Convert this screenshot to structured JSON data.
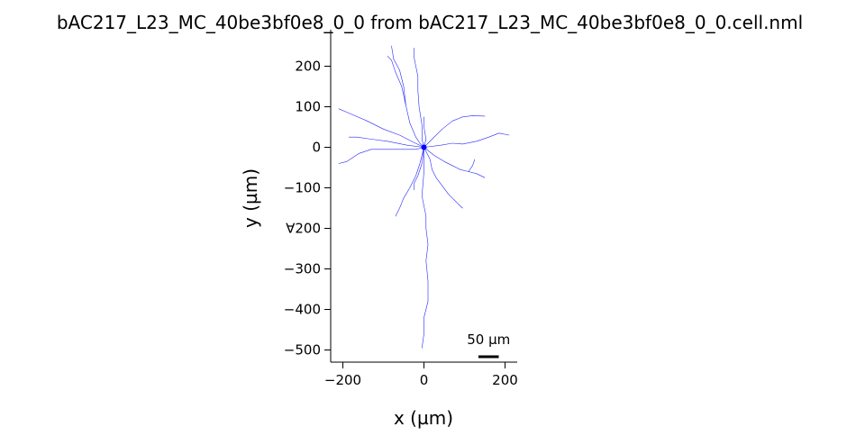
{
  "chart_data": {
    "type": "line",
    "title": "bAC217_L23_MC_40be3bf0e8_0_0 from bAC217_L23_MC_40be3bf0e8_0_0.cell.nml",
    "xlabel": "x (µm)",
    "ylabel": "y (µm)",
    "xlim": [
      -230,
      230
    ],
    "ylim": [
      -530,
      290
    ],
    "xticks": [
      -200,
      0,
      200
    ],
    "yticks": [
      200,
      100,
      0,
      -100,
      -200,
      -300,
      -400,
      -500
    ],
    "xtick_labels": [
      "−200",
      "0",
      "200"
    ],
    "ytick_labels": [
      "200",
      "100",
      "0",
      "−100",
      "∀200",
      "−300",
      "−400",
      "−500"
    ],
    "grid": false,
    "color": "#0000ff",
    "soma": {
      "x": 0,
      "y": 0
    },
    "scale_bar": {
      "label": "50 µm",
      "length": 50
    },
    "series": [
      {
        "values": [
          [
            0,
            0
          ],
          [
            -10,
            10
          ],
          [
            -20,
            25
          ],
          [
            -35,
            60
          ],
          [
            -45,
            105
          ],
          [
            -55,
            150
          ],
          [
            -70,
            185
          ],
          [
            -80,
            215
          ],
          [
            -90,
            225
          ]
        ]
      },
      {
        "values": [
          [
            -45,
            105
          ],
          [
            -50,
            150
          ],
          [
            -60,
            190
          ],
          [
            -75,
            218
          ],
          [
            -80,
            250
          ]
        ]
      },
      {
        "values": [
          [
            0,
            0
          ],
          [
            -5,
            20
          ],
          [
            -5,
            55
          ],
          [
            -12,
            100
          ],
          [
            -15,
            140
          ],
          [
            -15,
            175
          ],
          [
            -20,
            200
          ],
          [
            -25,
            225
          ],
          [
            -25,
            245
          ]
        ]
      },
      {
        "values": [
          [
            0,
            0
          ],
          [
            -25,
            12
          ],
          [
            -60,
            30
          ],
          [
            -100,
            45
          ],
          [
            -140,
            65
          ],
          [
            -175,
            80
          ],
          [
            -210,
            95
          ]
        ]
      },
      {
        "values": [
          [
            0,
            0
          ],
          [
            -40,
            5
          ],
          [
            -90,
            15
          ],
          [
            -130,
            20
          ],
          [
            -165,
            25
          ],
          [
            -185,
            25
          ]
        ]
      },
      {
        "values": [
          [
            0,
            0
          ],
          [
            -20,
            -5
          ],
          [
            -60,
            -5
          ],
          [
            -100,
            -5
          ],
          [
            -130,
            -5
          ],
          [
            -160,
            -15
          ],
          [
            -190,
            -35
          ],
          [
            -210,
            -40
          ]
        ]
      },
      {
        "values": [
          [
            0,
            0
          ],
          [
            5,
            20
          ],
          [
            0,
            50
          ],
          [
            0,
            75
          ]
        ]
      },
      {
        "values": [
          [
            0,
            0
          ],
          [
            20,
            20
          ],
          [
            45,
            45
          ],
          [
            70,
            65
          ],
          [
            95,
            75
          ],
          [
            120,
            78
          ],
          [
            150,
            77
          ]
        ]
      },
      {
        "values": [
          [
            0,
            0
          ],
          [
            40,
            5
          ],
          [
            70,
            10
          ],
          [
            95,
            8
          ],
          [
            130,
            15
          ],
          [
            160,
            25
          ],
          [
            185,
            35
          ],
          [
            210,
            30
          ]
        ]
      },
      {
        "values": [
          [
            0,
            0
          ],
          [
            15,
            -30
          ],
          [
            20,
            -55
          ],
          [
            30,
            -75
          ],
          [
            45,
            -95
          ],
          [
            60,
            -115
          ],
          [
            80,
            -135
          ],
          [
            95,
            -150
          ]
        ]
      },
      {
        "values": [
          [
            0,
            0
          ],
          [
            25,
            -20
          ],
          [
            50,
            -35
          ],
          [
            70,
            -45
          ],
          [
            90,
            -55
          ],
          [
            110,
            -60
          ],
          [
            130,
            -65
          ],
          [
            150,
            -75
          ]
        ]
      },
      {
        "values": [
          [
            110,
            -60
          ],
          [
            120,
            -45
          ],
          [
            125,
            -30
          ]
        ]
      },
      {
        "values": [
          [
            0,
            0
          ],
          [
            -10,
            -40
          ],
          [
            -20,
            -70
          ],
          [
            -35,
            -100
          ],
          [
            -50,
            -125
          ],
          [
            -60,
            -150
          ],
          [
            -70,
            -170
          ]
        ]
      },
      {
        "values": [
          [
            0,
            0
          ],
          [
            -5,
            -40
          ],
          [
            -15,
            -70
          ],
          [
            -25,
            -90
          ],
          [
            -25,
            -105
          ]
        ]
      },
      {
        "values": [
          [
            0,
            0
          ],
          [
            0,
            -60
          ],
          [
            -5,
            -120
          ],
          [
            5,
            -170
          ],
          [
            5,
            -200
          ],
          [
            10,
            -240
          ],
          [
            5,
            -280
          ],
          [
            10,
            -330
          ],
          [
            10,
            -380
          ],
          [
            0,
            -420
          ],
          [
            0,
            -460
          ],
          [
            -5,
            -495
          ]
        ]
      }
    ]
  }
}
